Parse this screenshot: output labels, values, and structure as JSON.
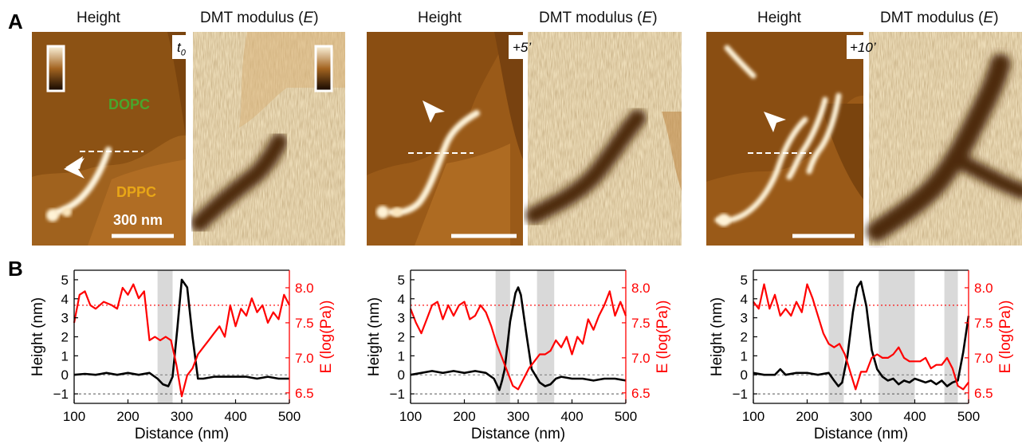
{
  "figure": {
    "panel_a_letter": "A",
    "panel_b_letter": "B",
    "height_label": "Height",
    "modulus_label": "DMT modulus (E)",
    "phase_label": "DOPC",
    "phase2_label": "DPPC",
    "scale_label": "300 nm",
    "times": [
      "t0",
      "+5’",
      "+10’"
    ],
    "colors": {
      "height_dark": "#3b1a04",
      "height_mid": "#9a5a18",
      "height_light": "#f6e7c0",
      "modulus_light": "#f1e4c4",
      "modulus_dark": "#4a2a0e",
      "height_line": "#000000",
      "modulus_line": "#ff0000",
      "gray_band": "#d9d9d9",
      "dopc_text": "#4aa52c",
      "dppc_text": "#e8a617"
    }
  },
  "chart_data": [
    {
      "type": "line",
      "xlabel": "Distance (nm)",
      "ylabel_left": "Height (nm)",
      "ylabel_right": "E (log(Pa))",
      "xlim": [
        100,
        500
      ],
      "ylim_left": [
        -1.5,
        5.5
      ],
      "ylim_right": [
        6.35,
        8.25
      ],
      "x_ticks": [
        "100",
        "200",
        "300",
        "400",
        "500"
      ],
      "y_ticks_left": [
        "−1",
        "0",
        "1",
        "2",
        "3",
        "4",
        "5"
      ],
      "y_ticks_right": [
        "6.5",
        "7.0",
        "7.5",
        "8.0"
      ],
      "ref_left": -1.0,
      "ref_right": 7.75,
      "bands": [
        [
          255,
          283
        ]
      ],
      "series": [
        {
          "axis": "left",
          "x": [
            100,
            120,
            140,
            160,
            180,
            200,
            220,
            240,
            255,
            265,
            275,
            283,
            292,
            300,
            310,
            320,
            330,
            340,
            360,
            380,
            400,
            420,
            440,
            460,
            480,
            500
          ],
          "y": [
            0.0,
            0.05,
            0.0,
            0.1,
            0.0,
            0.1,
            0.0,
            0.1,
            -0.2,
            -0.5,
            -0.6,
            -0.1,
            2.5,
            5.0,
            4.6,
            2.0,
            -0.2,
            -0.2,
            -0.1,
            -0.1,
            -0.1,
            -0.1,
            -0.2,
            -0.1,
            -0.2,
            -0.2
          ]
        },
        {
          "axis": "right",
          "x": [
            100,
            110,
            120,
            130,
            140,
            155,
            170,
            180,
            190,
            200,
            210,
            220,
            230,
            240,
            250,
            260,
            270,
            280,
            290,
            300,
            310,
            320,
            330,
            340,
            350,
            360,
            370,
            380,
            390,
            400,
            410,
            420,
            430,
            440,
            450,
            460,
            470,
            480,
            490,
            500
          ],
          "y": [
            7.5,
            7.9,
            7.95,
            7.75,
            7.7,
            7.8,
            7.75,
            7.7,
            8.0,
            7.9,
            8.05,
            7.85,
            7.95,
            7.25,
            7.3,
            7.25,
            7.3,
            7.25,
            6.9,
            6.45,
            6.75,
            6.85,
            7.05,
            7.15,
            7.25,
            7.35,
            7.45,
            7.3,
            7.75,
            7.45,
            7.7,
            7.6,
            7.85,
            7.65,
            7.75,
            7.5,
            7.65,
            7.55,
            7.9,
            7.75
          ]
        }
      ]
    },
    {
      "type": "line",
      "xlabel": "Distance (nm)",
      "ylabel_left": "Height (nm)",
      "ylabel_right": "E (log(Pa))",
      "xlim": [
        100,
        500
      ],
      "ylim_left": [
        -1.5,
        5.5
      ],
      "ylim_right": [
        6.35,
        8.25
      ],
      "x_ticks": [
        "100",
        "200",
        "300",
        "400",
        "500"
      ],
      "y_ticks_left": [
        "−1",
        "0",
        "1",
        "2",
        "3",
        "4",
        "5"
      ],
      "y_ticks_right": [
        "6.5",
        "7.0",
        "7.5",
        "8.0"
      ],
      "ref_left": -1.0,
      "ref_right": 7.75,
      "bands": [
        [
          258,
          285
        ],
        [
          335,
          367
        ]
      ],
      "series": [
        {
          "axis": "left",
          "x": [
            100,
            120,
            140,
            160,
            180,
            200,
            220,
            240,
            255,
            265,
            270,
            275,
            285,
            295,
            300,
            305,
            315,
            325,
            340,
            350,
            360,
            370,
            380,
            400,
            420,
            440,
            460,
            480,
            500
          ],
          "y": [
            0.0,
            0.1,
            0.2,
            0.1,
            0.2,
            0.1,
            0.2,
            0.1,
            -0.2,
            -0.8,
            -0.3,
            0.3,
            2.8,
            4.3,
            4.6,
            4.2,
            2.2,
            0.3,
            -0.4,
            -0.6,
            -0.5,
            -0.2,
            -0.1,
            -0.2,
            -0.2,
            -0.3,
            -0.2,
            -0.2,
            -0.3
          ]
        },
        {
          "axis": "right",
          "x": [
            100,
            110,
            120,
            130,
            140,
            150,
            160,
            170,
            180,
            190,
            200,
            210,
            220,
            230,
            240,
            250,
            260,
            270,
            280,
            290,
            300,
            310,
            320,
            330,
            340,
            350,
            360,
            370,
            380,
            390,
            400,
            410,
            420,
            430,
            440,
            450,
            460,
            470,
            480,
            490,
            500
          ],
          "y": [
            7.7,
            7.5,
            7.35,
            7.55,
            7.75,
            7.8,
            7.55,
            7.75,
            7.6,
            7.75,
            7.8,
            7.55,
            7.6,
            7.75,
            7.65,
            7.45,
            7.2,
            7.0,
            6.8,
            6.6,
            6.55,
            6.7,
            6.85,
            6.95,
            7.05,
            7.05,
            7.1,
            7.25,
            7.15,
            7.3,
            7.05,
            7.3,
            7.2,
            7.55,
            7.4,
            7.6,
            7.75,
            7.95,
            7.6,
            7.8,
            7.6
          ]
        }
      ]
    },
    {
      "type": "line",
      "xlabel": "Distance (nm)",
      "ylabel_left": "Height (nm)",
      "ylabel_right": "E (log(Pa))",
      "xlim": [
        100,
        500
      ],
      "ylim_left": [
        -1.5,
        5.5
      ],
      "ylim_right": [
        6.35,
        8.25
      ],
      "x_ticks": [
        "100",
        "200",
        "300",
        "400",
        "500"
      ],
      "y_ticks_left": [
        "−1",
        "0",
        "1",
        "2",
        "3",
        "4",
        "5"
      ],
      "y_ticks_right": [
        "6.5",
        "7.0",
        "7.5",
        "8.0"
      ],
      "ref_left": -1.0,
      "ref_right": 7.75,
      "bands": [
        [
          240,
          268
        ],
        [
          333,
          400
        ],
        [
          455,
          480
        ]
      ],
      "series": [
        {
          "axis": "left",
          "x": [
            100,
            120,
            140,
            150,
            160,
            180,
            200,
            220,
            240,
            250,
            258,
            265,
            275,
            285,
            293,
            300,
            310,
            320,
            330,
            340,
            350,
            360,
            370,
            380,
            390,
            400,
            410,
            420,
            430,
            440,
            450,
            460,
            470,
            480,
            490,
            500
          ],
          "y": [
            0.1,
            0.0,
            0.0,
            0.3,
            0.0,
            0.1,
            0.1,
            0.0,
            0.1,
            -0.3,
            -0.6,
            -0.4,
            1.0,
            3.3,
            4.6,
            4.9,
            3.6,
            1.3,
            0.3,
            -0.1,
            -0.3,
            -0.2,
            -0.5,
            -0.3,
            -0.4,
            -0.2,
            -0.3,
            -0.4,
            -0.3,
            -0.5,
            -0.3,
            -0.6,
            -0.4,
            -0.3,
            1.2,
            3.1
          ]
        },
        {
          "axis": "right",
          "x": [
            100,
            110,
            120,
            130,
            140,
            150,
            160,
            170,
            180,
            190,
            200,
            210,
            220,
            230,
            240,
            250,
            260,
            270,
            280,
            290,
            300,
            310,
            320,
            330,
            340,
            350,
            360,
            370,
            380,
            390,
            400,
            410,
            420,
            430,
            440,
            450,
            460,
            470,
            480,
            490,
            500
          ],
          "y": [
            7.8,
            7.7,
            8.05,
            7.7,
            7.9,
            7.6,
            7.7,
            7.6,
            7.8,
            7.65,
            8.05,
            7.85,
            7.6,
            7.35,
            7.2,
            7.15,
            7.2,
            7.05,
            6.8,
            6.55,
            6.8,
            6.8,
            7.0,
            7.05,
            7.0,
            7.0,
            7.05,
            7.15,
            7.0,
            6.95,
            6.95,
            6.95,
            7.0,
            6.85,
            6.9,
            6.9,
            7.0,
            6.85,
            6.6,
            6.55,
            6.65
          ]
        }
      ]
    }
  ]
}
